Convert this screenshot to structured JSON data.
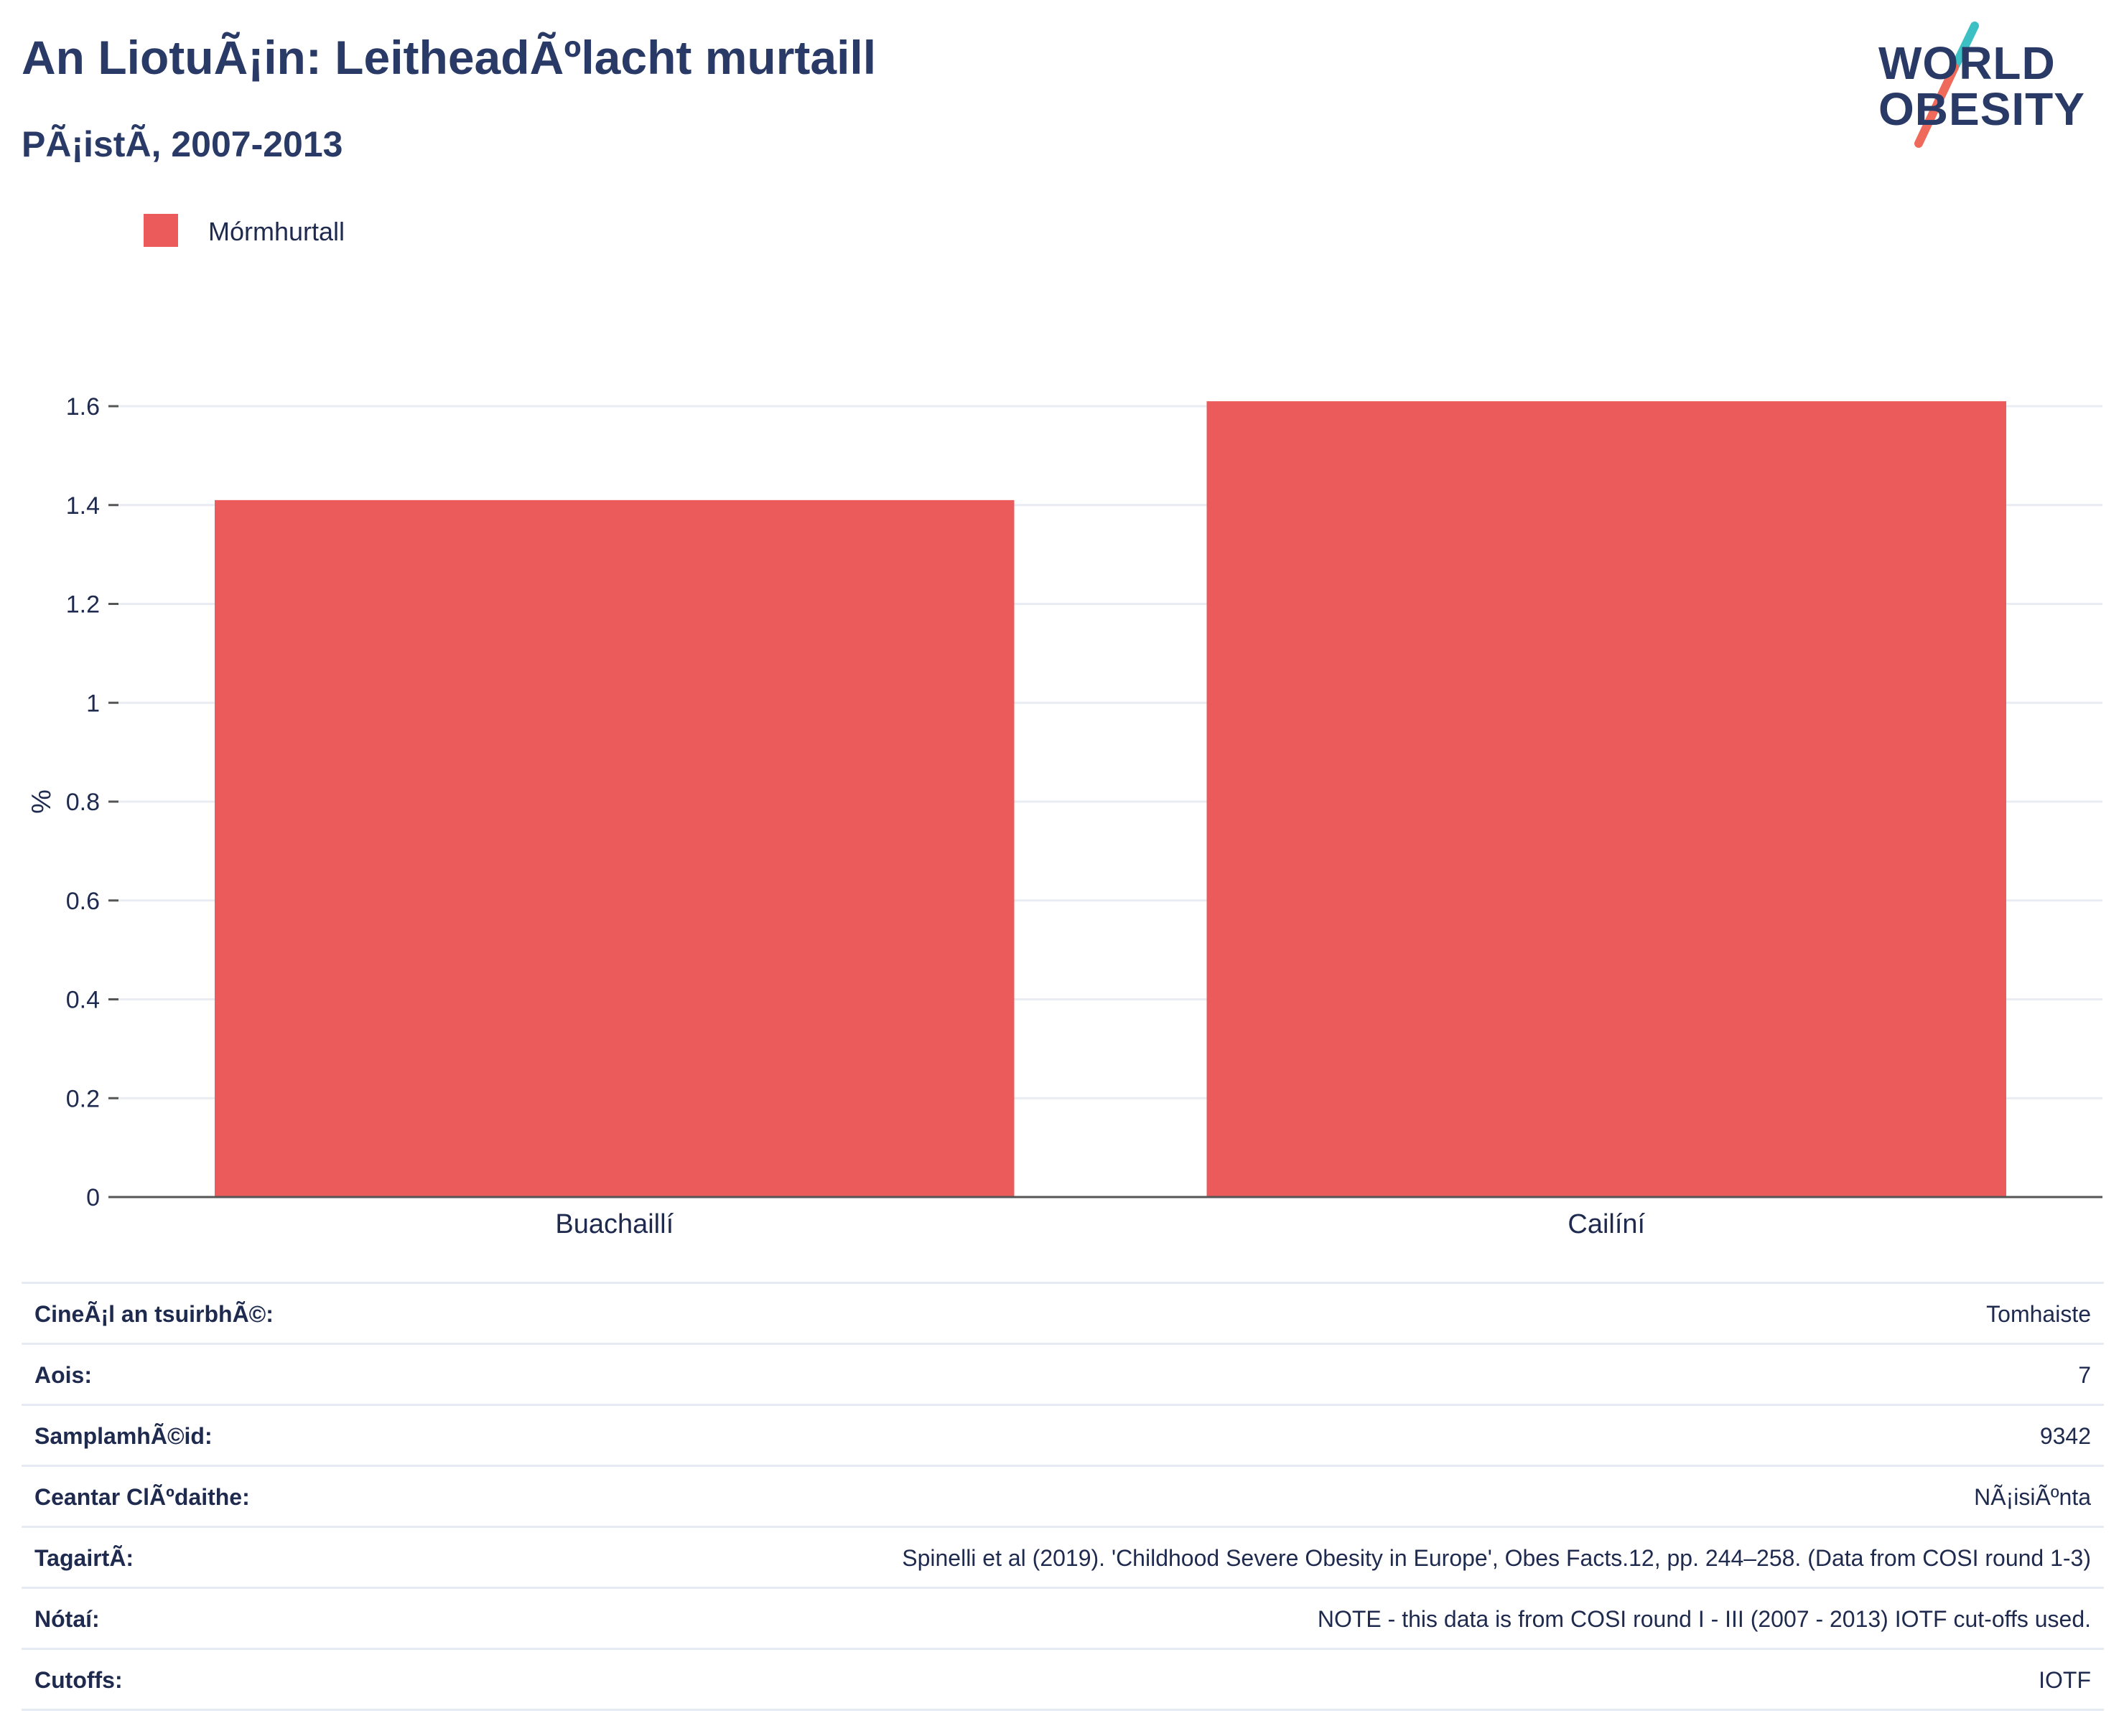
{
  "header": {
    "title": "An LiotuÃ¡in: LeitheadÃºlacht murtaill",
    "subtitle": "PÃ¡istÃ, 2007-2013"
  },
  "logo": {
    "line1": "WORLD",
    "line2": "OBESITY",
    "accent_teal": "#3cc0c3",
    "accent_coral": "#ef6a5a"
  },
  "legend": {
    "label": "Mórmhurtall",
    "color": "#eb5b5b"
  },
  "chart_data": {
    "type": "bar",
    "categories": [
      "Buachaillí",
      "Cailíní"
    ],
    "series": [
      {
        "name": "Mórmhurtall",
        "values": [
          1.41,
          1.61
        ]
      }
    ],
    "ylabel": "%",
    "xlabel": "",
    "ylim": [
      0,
      1.6
    ],
    "yticks": [
      "0",
      "0.2",
      "0.4",
      "0.6",
      "0.8",
      "1",
      "1.2",
      "1.4",
      "1.6"
    ],
    "ytick_values": [
      0,
      0.2,
      0.4,
      0.6,
      0.8,
      1,
      1.2,
      1.4,
      1.6
    ],
    "grid": true,
    "bar_color": "#eb5b5b"
  },
  "info_table": [
    {
      "key": "CineÃ¡l an tsuirbhÃ©:",
      "value": "Tomhaiste"
    },
    {
      "key": "Aois:",
      "value": "7"
    },
    {
      "key": "SamplamhÃ©id:",
      "value": "9342"
    },
    {
      "key": "Ceantar ClÃºdaithe:",
      "value": "NÃ¡isiÃºnta"
    },
    {
      "key": "TagairtÃ:",
      "value": "Spinelli et al (2019). 'Childhood Severe Obesity in Europe', Obes Facts.12, pp. 244–258. (Data from COSI round 1-3)"
    },
    {
      "key": "Nótaí:",
      "value": "NOTE - this data is from COSI round I - III (2007 - 2013) IOTF cut-offs used."
    },
    {
      "key": "Cutoffs:",
      "value": "IOTF"
    }
  ]
}
